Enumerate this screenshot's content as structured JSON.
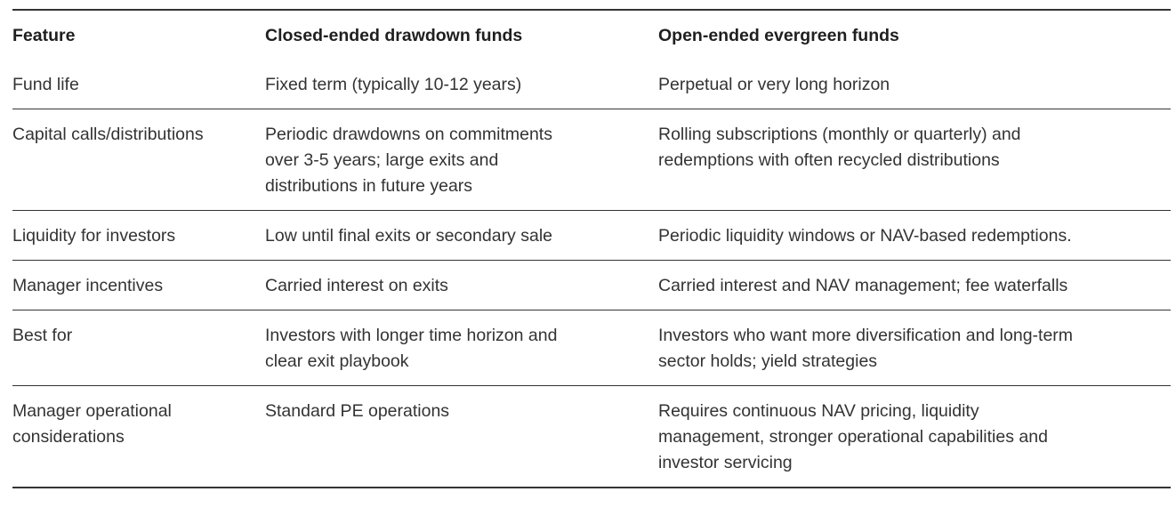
{
  "table": {
    "columns": [
      "Feature",
      "Closed-ended drawdown funds",
      "Open-ended evergreen funds"
    ],
    "rows": [
      {
        "feature": "Fund life",
        "closed": "Fixed term (typically 10-12 years)",
        "open": "Perpetual or very long horizon"
      },
      {
        "feature": "Capital calls/distributions",
        "closed": "Periodic drawdowns on commitments\nover 3-5 years; large exits and\ndistributions in future years",
        "open": "Rolling subscriptions (monthly or quarterly) and\nredemptions with often recycled distributions"
      },
      {
        "feature": "Liquidity for investors",
        "closed": "Low until final exits or secondary sale",
        "open": "Periodic liquidity windows or NAV-based redemptions."
      },
      {
        "feature": "Manager incentives",
        "closed": "Carried interest on exits",
        "open": "Carried interest and NAV management; fee waterfalls"
      },
      {
        "feature": "Best for",
        "closed": "Investors with longer time horizon and\nclear exit playbook",
        "open": "Investors who want more diversification and long-term\nsector holds; yield strategies"
      },
      {
        "feature": "Manager operational\nconsiderations",
        "closed": "Standard PE operations",
        "open": "Requires continuous NAV pricing, liquidity\nmanagement, stronger operational capabilities and\ninvestor servicing"
      }
    ],
    "colors": {
      "text": "#333333",
      "header_text": "#1f1f1f",
      "line": "#343434",
      "background": "#ffffff"
    }
  }
}
